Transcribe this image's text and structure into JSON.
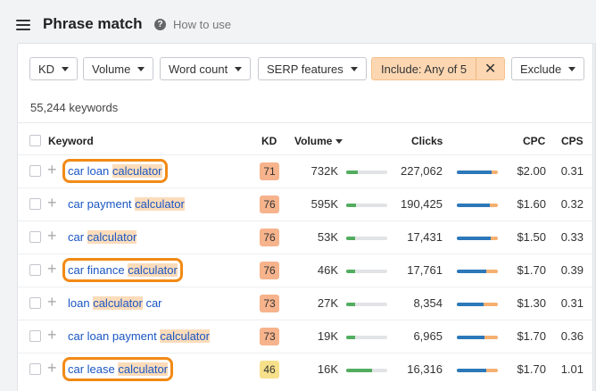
{
  "header": {
    "title": "Phrase match",
    "help_icon": "question-circle-icon",
    "help_label": "How to use"
  },
  "filters": {
    "kd": "KD",
    "volume": "Volume",
    "word_count": "Word count",
    "serp_features": "SERP features",
    "include": "Include: Any of 5",
    "include_clear": "✕",
    "exclude": "Exclude"
  },
  "summary": {
    "keyword_count": "55,244 keywords"
  },
  "columns": {
    "keyword": "Keyword",
    "kd": "KD",
    "volume": "Volume",
    "clicks": "Clicks",
    "cpc": "CPC",
    "cps": "CPS"
  },
  "rows": [
    {
      "parts": [
        "car loan ",
        "calculator"
      ],
      "kd": "71",
      "kd_color": "#f6b38c",
      "volume": "732K",
      "volume_fill": 0.28,
      "clicks": "227,062",
      "clicks_paid": 0.85,
      "clicks_other": 0.15,
      "cpc": "$2.00",
      "cps": "0.31",
      "boxed": true
    },
    {
      "parts": [
        "car payment ",
        "calculator"
      ],
      "kd": "76",
      "kd_color": "#f6b38c",
      "volume": "595K",
      "volume_fill": 0.24,
      "clicks": "190,425",
      "clicks_paid": 0.8,
      "clicks_other": 0.2,
      "cpc": "$1.60",
      "cps": "0.32",
      "boxed": false
    },
    {
      "parts": [
        "car ",
        "calculator"
      ],
      "kd": "76",
      "kd_color": "#f6b38c",
      "volume": "53K",
      "volume_fill": 0.22,
      "clicks": "17,431",
      "clicks_paid": 0.82,
      "clicks_other": 0.18,
      "cpc": "$1.50",
      "cps": "0.33",
      "boxed": false
    },
    {
      "parts": [
        "car finance ",
        "calculator"
      ],
      "kd": "76",
      "kd_color": "#f6b38c",
      "volume": "46K",
      "volume_fill": 0.22,
      "clicks": "17,761",
      "clicks_paid": 0.72,
      "clicks_other": 0.28,
      "cpc": "$1.70",
      "cps": "0.39",
      "boxed": true
    },
    {
      "parts": [
        "loan ",
        "calculator",
        " car"
      ],
      "kd": "73",
      "kd_color": "#f6b38c",
      "volume": "27K",
      "volume_fill": 0.22,
      "clicks": "8,354",
      "clicks_paid": 0.65,
      "clicks_other": 0.35,
      "cpc": "$1.30",
      "cps": "0.31",
      "boxed": false
    },
    {
      "parts": [
        "car loan payment ",
        "calculator"
      ],
      "kd": "73",
      "kd_color": "#f6b38c",
      "volume": "19K",
      "volume_fill": 0.22,
      "clicks": "6,965",
      "clicks_paid": 0.68,
      "clicks_other": 0.32,
      "cpc": "$1.70",
      "cps": "0.36",
      "boxed": false
    },
    {
      "parts": [
        "car lease ",
        "calculator"
      ],
      "kd": "46",
      "kd_color": "#f7e08a",
      "volume": "16K",
      "volume_fill": 0.62,
      "clicks": "16,316",
      "clicks_paid": 0.72,
      "clicks_other": 0.28,
      "cpc": "$1.70",
      "cps": "1.01",
      "boxed": true
    }
  ]
}
